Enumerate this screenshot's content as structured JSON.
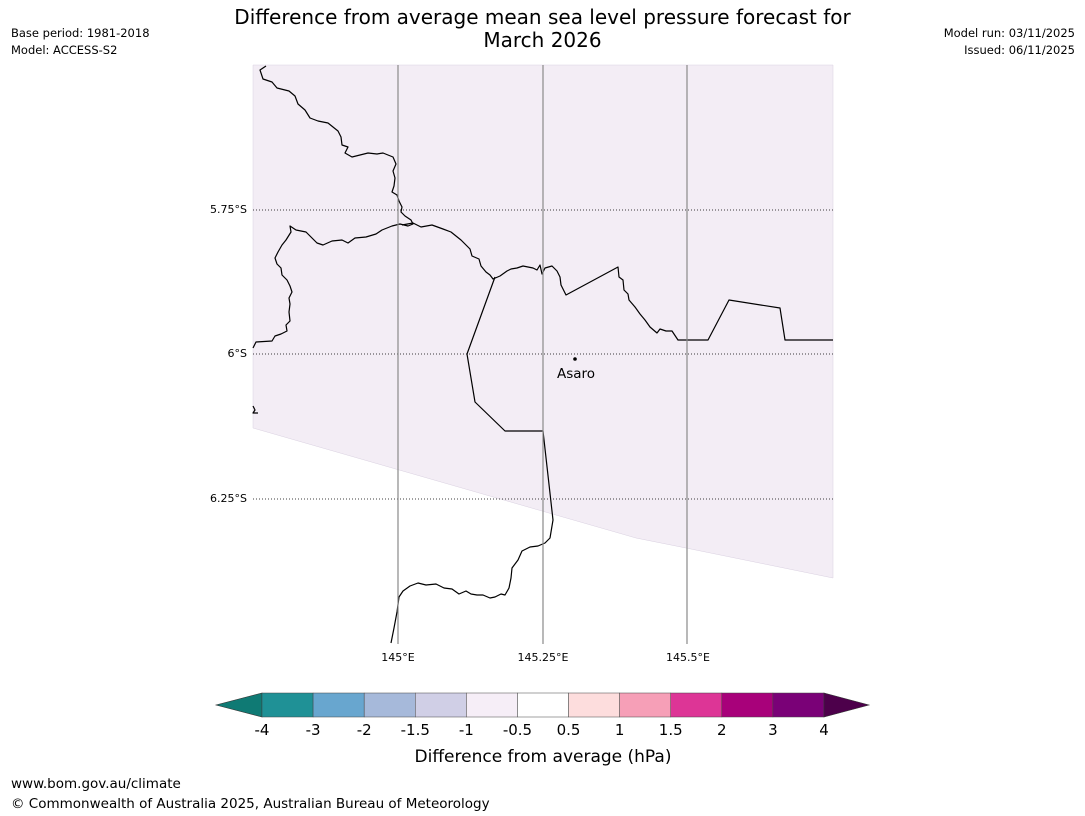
{
  "title": {
    "line1": "Difference from average mean sea level pressure forecast for",
    "line2": "March 2026"
  },
  "meta_left": {
    "base_period": "Base period: 1981-2018",
    "model": "Model: ACCESS-S2"
  },
  "meta_right": {
    "model_run": "Model run: 03/11/2025",
    "issued": "Issued: 06/11/2025"
  },
  "map": {
    "lat_labels": [
      "5.75°S",
      "6°S",
      "6.25°S"
    ],
    "lon_labels": [
      "145°E",
      "145.25°E",
      "145.5°E"
    ],
    "place": "Asaro",
    "fill_color": "#f3edf5",
    "coast_color": "#000000"
  },
  "colorbar": {
    "ticks": [
      "-4",
      "-3",
      "-2",
      "-1.5",
      "-1",
      "-0.5",
      "0.5",
      "1",
      "1.5",
      "2",
      "3",
      "4"
    ],
    "colors": [
      "#0f7a74",
      "#1f9196",
      "#68a6cf",
      "#a6b9da",
      "#d0cfe6",
      "#f6eef7",
      "#ffffff",
      "#fddddd",
      "#f69fb7",
      "#dd3596",
      "#a8017a",
      "#7a0177",
      "#4d004b"
    ],
    "label": "Difference from average (hPa)"
  },
  "footer": {
    "url": "www.bom.gov.au/climate",
    "copyright": "© Commonwealth of Australia 2025, Australian Bureau of Meteorology"
  }
}
